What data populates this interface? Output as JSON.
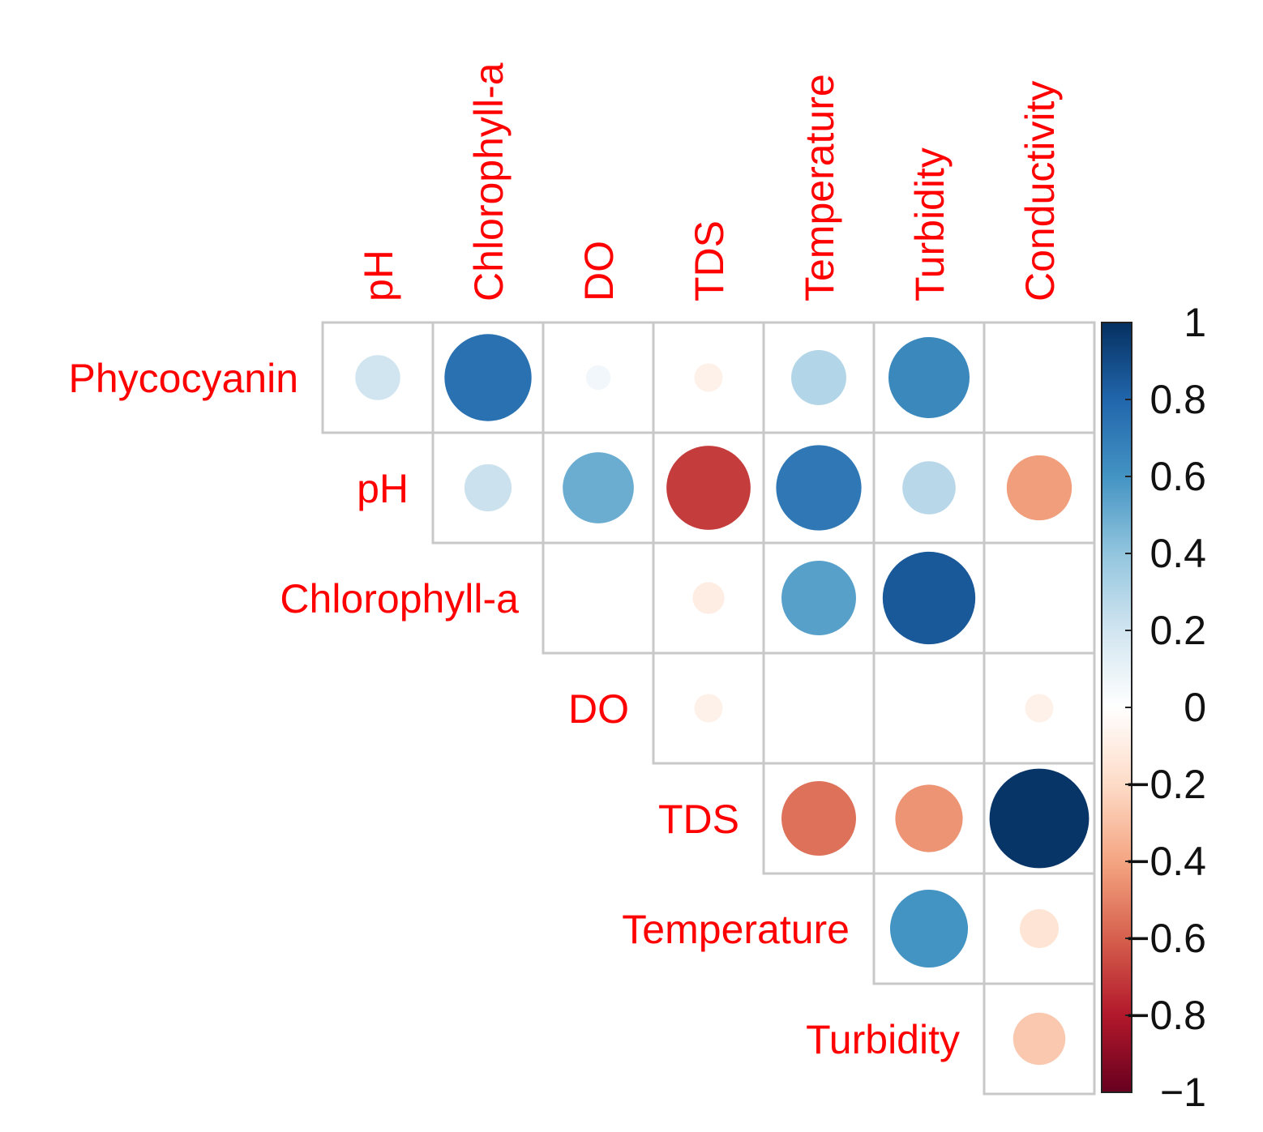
{
  "chart_data": {
    "type": "heatmap",
    "subtype": "correlation-circles-upper-triangle",
    "title": "",
    "rows": [
      "Phycocyanin",
      "pH",
      "Chlorophyll-a",
      "DO",
      "TDS",
      "Temperature",
      "Turbidity"
    ],
    "columns": [
      "pH",
      "Chlorophyll-a",
      "DO",
      "TDS",
      "Temperature",
      "Turbidity",
      "Conductivity"
    ],
    "matrix": [
      [
        0.2,
        0.75,
        0.06,
        -0.08,
        0.3,
        0.65,
        0.0
      ],
      [
        null,
        0.22,
        0.5,
        -0.7,
        0.72,
        0.28,
        -0.42
      ],
      [
        null,
        null,
        0.0,
        -0.1,
        0.55,
        0.85,
        0.0
      ],
      [
        null,
        null,
        null,
        -0.08,
        0.0,
        0.0,
        -0.08
      ],
      [
        null,
        null,
        null,
        null,
        -0.55,
        -0.45,
        0.98
      ],
      [
        null,
        null,
        null,
        null,
        null,
        0.6,
        -0.15
      ],
      [
        null,
        null,
        null,
        null,
        null,
        null,
        -0.27
      ]
    ],
    "colorbar": {
      "range": [
        -1,
        1
      ],
      "ticks": [
        "1",
        "0.8",
        "0.6",
        "0.4",
        "0.2",
        "0",
        "−0.2",
        "−0.4",
        "−0.6",
        "−0.8",
        "−1"
      ],
      "stops": [
        "#67001f",
        "#b2182b",
        "#d6604d",
        "#f4a582",
        "#fddbc7",
        "#ffffff",
        "#d1e5f0",
        "#92c5de",
        "#4393c3",
        "#2166ac",
        "#053061"
      ]
    }
  }
}
